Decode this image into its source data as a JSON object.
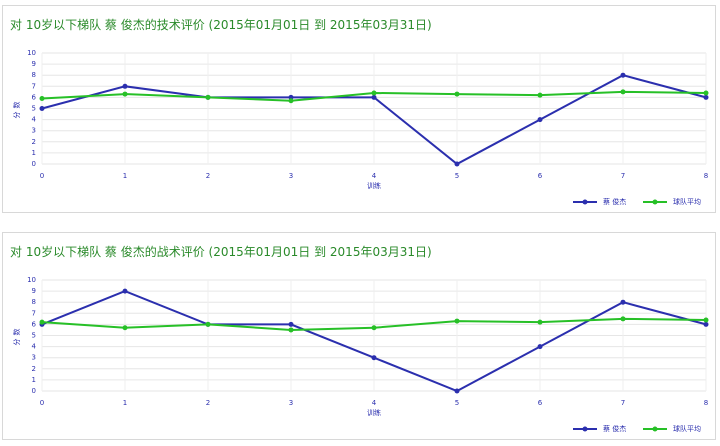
{
  "chart_data": [
    {
      "type": "line",
      "title": "对 10岁以下梯队 蔡 俊杰的技术评价 (2015年01月01日 到 2015年03月31日)",
      "x_label": "训练",
      "y_label": "分数",
      "x": [
        0,
        1,
        2,
        3,
        4,
        5,
        6,
        7,
        8
      ],
      "xlim": [
        0,
        8
      ],
      "xticks": [
        0,
        1,
        2,
        3,
        4,
        5,
        6,
        7,
        8
      ],
      "ylim": [
        0,
        10
      ],
      "yticks": [
        0,
        1,
        2,
        3,
        4,
        5,
        6,
        7,
        8,
        9,
        10
      ],
      "grid": true,
      "legend": "bottom-right",
      "series": [
        {
          "name": "蔡 俊杰",
          "color": "#2b2fae",
          "values": [
            5,
            7,
            6,
            6,
            6,
            0,
            4,
            8,
            6
          ]
        },
        {
          "name": "球队平均",
          "color": "#27c027",
          "values": [
            5.9,
            6.3,
            6.0,
            5.7,
            6.4,
            6.3,
            6.2,
            6.5,
            6.4
          ]
        }
      ]
    },
    {
      "type": "line",
      "title": "对 10岁以下梯队 蔡 俊杰的战术评价 (2015年01月01日 到 2015年03月31日)",
      "x_label": "训练",
      "y_label": "分数",
      "x": [
        0,
        1,
        2,
        3,
        4,
        5,
        6,
        7,
        8
      ],
      "xlim": [
        0,
        8
      ],
      "xticks": [
        0,
        1,
        2,
        3,
        4,
        5,
        6,
        7,
        8
      ],
      "ylim": [
        0,
        10
      ],
      "yticks": [
        0,
        1,
        2,
        3,
        4,
        5,
        6,
        7,
        8,
        9,
        10
      ],
      "grid": true,
      "legend": "bottom-right",
      "series": [
        {
          "name": "蔡 俊杰",
          "color": "#2b2fae",
          "values": [
            6,
            9,
            6,
            6,
            3,
            0,
            4,
            8,
            6
          ]
        },
        {
          "name": "球队平均",
          "color": "#27c027",
          "values": [
            6.2,
            5.7,
            6.0,
            5.5,
            5.7,
            6.3,
            6.2,
            6.5,
            6.4
          ]
        }
      ]
    }
  ]
}
